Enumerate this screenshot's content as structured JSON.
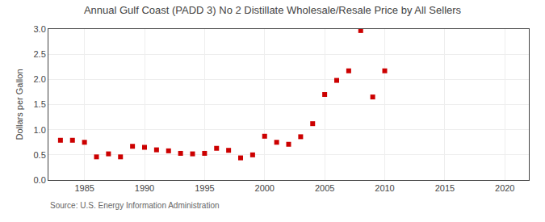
{
  "chart_data": {
    "type": "scatter",
    "title": "Annual Gulf Coast (PADD 3) No 2 Distillate Wholesale/Resale Price by All Sellers",
    "ylabel": "Dollars per Gallon",
    "annotations": [
      "Source: U.S. Energy Information Administration"
    ],
    "color": "#CC0000",
    "marker": "square",
    "grid": true,
    "xlim": [
      1982,
      2022
    ],
    "ylim": [
      0.0,
      3.0
    ],
    "xticks": [
      1985,
      1990,
      1995,
      2000,
      2005,
      2010,
      2015,
      2020
    ],
    "yticks": [
      {
        "value": 0.0,
        "label": "0.0"
      },
      0.5,
      {
        "value": 1.0,
        "label": "1.0"
      },
      1.5,
      {
        "value": 2.0,
        "label": "2.0"
      },
      2.5,
      {
        "value": 3.0,
        "label": "3.0"
      }
    ],
    "x": [
      1983,
      1984,
      1985,
      1986,
      1987,
      1988,
      1989,
      1990,
      1991,
      1992,
      1993,
      1994,
      1995,
      1996,
      1997,
      1998,
      1999,
      2000,
      2001,
      2002,
      2003,
      2004,
      2005,
      2006,
      2007,
      2008,
      2009,
      2010
    ],
    "values": [
      0.79,
      0.79,
      0.75,
      0.46,
      0.52,
      0.46,
      0.67,
      0.65,
      0.6,
      0.58,
      0.53,
      0.52,
      0.53,
      0.63,
      0.59,
      0.44,
      0.5,
      0.87,
      0.75,
      0.71,
      0.86,
      1.12,
      1.7,
      1.98,
      2.17,
      2.97,
      1.65,
      2.17
    ]
  }
}
